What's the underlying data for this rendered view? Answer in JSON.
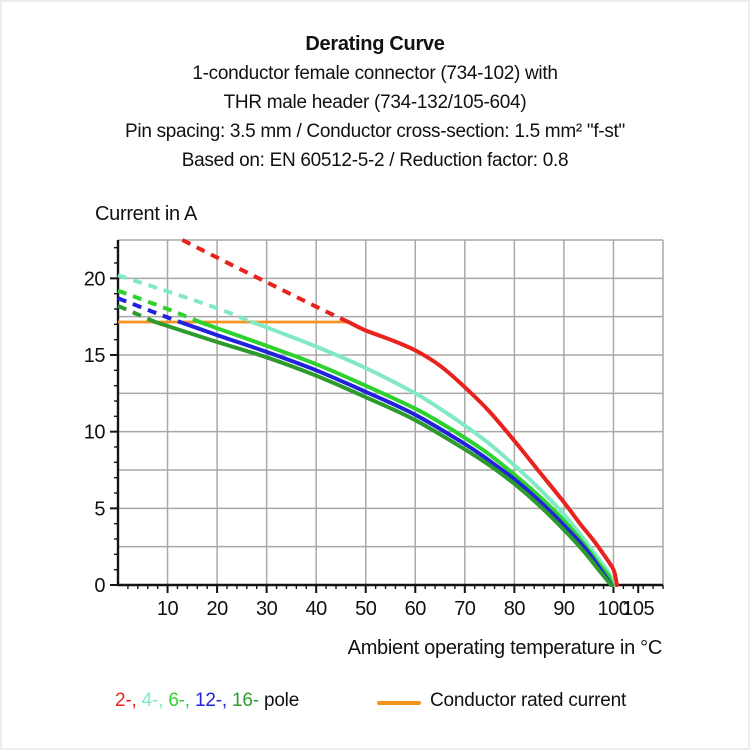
{
  "header": {
    "title": "Derating Curve",
    "lines": [
      "1-conductor female connector (734-102) with",
      "THR male header (734-132/105-604)",
      "Pin spacing: 3.5 mm / Conductor cross-section: 1.5 mm² \"f-st\"",
      "Based on: EN 60512-5-2 / Reduction factor: 0.8"
    ]
  },
  "chart_data": {
    "type": "line",
    "title": "Derating Curve",
    "ylabel": "Current in A",
    "xlabel": "Ambient operating temperature in °C",
    "xlim": [
      0,
      110
    ],
    "ylim": [
      0,
      22.5
    ],
    "x_major_ticks": [
      10,
      20,
      30,
      40,
      50,
      60,
      70,
      80,
      90,
      100,
      105
    ],
    "x_minor_tick_step": 2,
    "y_major_ticks": [
      0,
      5,
      10,
      15,
      20
    ],
    "y_minor_tick_step": 1,
    "x_gridline_step": 10,
    "y_gridline_step": 2.5,
    "grid_on": true,
    "grid_color": "#a9a9a9",
    "axis_color": "#141414",
    "rated_current_line": {
      "label": "Conductor rated current",
      "color": "#f6921e",
      "current_a": 17.15,
      "x_start": 0,
      "x_end": 46.5
    },
    "series": [
      {
        "name": "4-pole",
        "color": "#82e9c5",
        "dashed_points": [
          [
            0,
            20.2
          ],
          [
            10,
            19.15
          ],
          [
            20,
            18.05
          ],
          [
            27,
            17.15
          ]
        ],
        "solid_points": [
          [
            27,
            17.15
          ],
          [
            30,
            16.8
          ],
          [
            40,
            15.55
          ],
          [
            50,
            14.15
          ],
          [
            60,
            12.5
          ],
          [
            65,
            11.5
          ],
          [
            70,
            10.4
          ],
          [
            75,
            9.2
          ],
          [
            80,
            7.8
          ],
          [
            85,
            6.3
          ],
          [
            90,
            4.6
          ],
          [
            94,
            3.0
          ],
          [
            97,
            1.7
          ],
          [
            99,
            0.8
          ],
          [
            99.9,
            0
          ]
        ]
      },
      {
        "name": "6-pole",
        "color": "#2ed22e",
        "dashed_points": [
          [
            0,
            19.2
          ],
          [
            10,
            18.0
          ],
          [
            16.5,
            17.15
          ]
        ],
        "solid_points": [
          [
            16.5,
            17.15
          ],
          [
            20,
            16.75
          ],
          [
            30,
            15.6
          ],
          [
            40,
            14.4
          ],
          [
            50,
            13.0
          ],
          [
            60,
            11.5
          ],
          [
            65,
            10.6
          ],
          [
            70,
            9.6
          ],
          [
            75,
            8.5
          ],
          [
            80,
            7.2
          ],
          [
            85,
            5.8
          ],
          [
            90,
            4.2
          ],
          [
            94,
            2.7
          ],
          [
            97,
            1.4
          ],
          [
            99,
            0.6
          ],
          [
            99.7,
            0
          ]
        ]
      },
      {
        "name": "12-pole",
        "color": "#2222dd",
        "dashed_points": [
          [
            0,
            18.7
          ],
          [
            10,
            17.45
          ],
          [
            12.5,
            17.15
          ]
        ],
        "solid_points": [
          [
            12.5,
            17.15
          ],
          [
            20,
            16.3
          ],
          [
            30,
            15.2
          ],
          [
            40,
            14.0
          ],
          [
            50,
            12.6
          ],
          [
            60,
            11.1
          ],
          [
            70,
            9.2
          ],
          [
            75,
            8.1
          ],
          [
            80,
            6.9
          ],
          [
            85,
            5.5
          ],
          [
            90,
            3.9
          ],
          [
            94,
            2.5
          ],
          [
            97,
            1.2
          ],
          [
            99.6,
            0
          ]
        ]
      },
      {
        "name": "16-pole",
        "color": "#2d9b2d",
        "dashed_points": [
          [
            0,
            18.2
          ],
          [
            7.5,
            17.15
          ]
        ],
        "solid_points": [
          [
            7.5,
            17.15
          ],
          [
            20,
            15.85
          ],
          [
            30,
            14.85
          ],
          [
            40,
            13.65
          ],
          [
            50,
            12.25
          ],
          [
            60,
            10.75
          ],
          [
            70,
            8.85
          ],
          [
            75,
            7.8
          ],
          [
            80,
            6.6
          ],
          [
            85,
            5.2
          ],
          [
            90,
            3.6
          ],
          [
            94,
            2.2
          ],
          [
            97,
            1.0
          ],
          [
            99.5,
            0
          ]
        ]
      },
      {
        "name": "2-pole",
        "color": "#e8231e",
        "dashed_points": [
          [
            13,
            22.5
          ],
          [
            20,
            21.35
          ],
          [
            30,
            19.75
          ],
          [
            40,
            18.15
          ],
          [
            46.5,
            17.15
          ]
        ],
        "solid_points": [
          [
            46.5,
            17.15
          ],
          [
            50,
            16.6
          ],
          [
            55,
            16.0
          ],
          [
            60,
            15.3
          ],
          [
            65,
            14.3
          ],
          [
            70,
            12.9
          ],
          [
            75,
            11.3
          ],
          [
            80,
            9.4
          ],
          [
            85,
            7.4
          ],
          [
            90,
            5.4
          ],
          [
            93,
            4.1
          ],
          [
            96,
            2.9
          ],
          [
            98,
            2.0
          ],
          [
            100,
            1.0
          ],
          [
            100.7,
            0
          ]
        ]
      }
    ]
  },
  "legend": {
    "pole_items": [
      {
        "label": "2-",
        "color": "#e8231e"
      },
      {
        "label": "4-",
        "color": "#82e9c5"
      },
      {
        "label": "6-",
        "color": "#2ed22e"
      },
      {
        "label": "12-",
        "color": "#2222dd"
      },
      {
        "label": "16-",
        "color": "#2d9b2d"
      }
    ],
    "separator": ", ",
    "suffix": "pole",
    "rated_label": "Conductor rated current",
    "rated_color": "#f6921e"
  }
}
